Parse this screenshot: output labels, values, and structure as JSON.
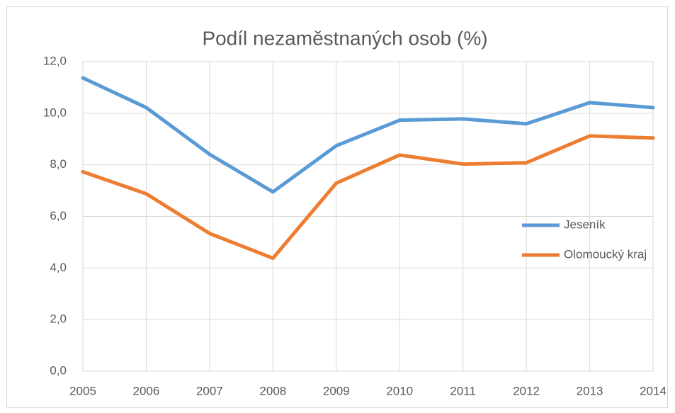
{
  "chart_data": {
    "type": "line",
    "title": "Podíl nezaměstnaných osob (%)",
    "categories": [
      "2005",
      "2006",
      "2007",
      "2008",
      "2009",
      "2010",
      "2011",
      "2012",
      "2013",
      "2014"
    ],
    "series": [
      {
        "name": "Jeseník",
        "color": "#5b9bd5",
        "values": [
          11.37,
          10.22,
          8.41,
          6.95,
          8.74,
          9.73,
          9.78,
          9.59,
          10.41,
          10.22
        ]
      },
      {
        "name": "Olomoucký kraj",
        "color": "#ed7d31",
        "values": [
          7.73,
          6.88,
          5.34,
          4.38,
          7.29,
          8.38,
          8.03,
          8.08,
          9.12,
          9.04
        ]
      }
    ],
    "ylim": [
      0,
      12
    ],
    "yticks": [
      {
        "value": 0,
        "label": "0,0"
      },
      {
        "value": 2,
        "label": "2,0"
      },
      {
        "value": 4,
        "label": "4,0"
      },
      {
        "value": 6,
        "label": "6,0"
      },
      {
        "value": 8,
        "label": "8,0"
      },
      {
        "value": 10,
        "label": "10,0"
      },
      {
        "value": 12,
        "label": "12,0"
      }
    ],
    "grid": true,
    "legend": "right"
  }
}
